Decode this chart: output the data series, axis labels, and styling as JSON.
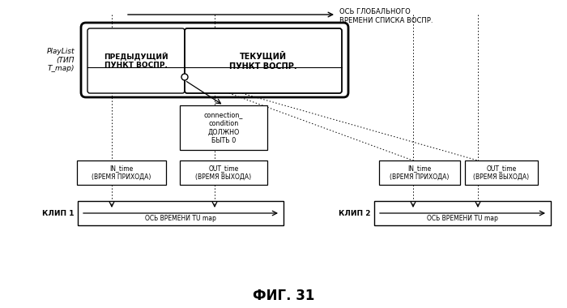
{
  "title": "ФИГ. 31",
  "bg_color": "#ffffff",
  "global_time_label": "ОСЬ ГЛОБАЛЬНОГО\nВРЕМЕНИ СПИСКА ВОСПР.",
  "playlist_label": "PlayList\n(ТИП\nT_map)",
  "prev_item_label": "ПРЕДЫДУЩИЙ\nПУНКТ ВОСПР.",
  "cur_item_label": "ТЕКУЩИЙ\nПУНКТ ВОСПР.",
  "connection_label": "connection_\ncondition\nДОЛЖНО\nБЫТЬ 0",
  "in_time_label1": "IN_time\n(ВРЕМЯ ПРИХОДА)",
  "out_time_label1": "OUT_time\n(ВРЕМЯ ВЫХОДА)",
  "clip1_label": "КЛИП 1",
  "clip1_axis": "ОСЬ ВРЕМЕНИ TU map",
  "in_time_label2": "IN_time\n(ВРЕМЯ ПРИХОДА)",
  "out_time_label2": "OUT_time\n(ВРЕМЯ ВЫХОДА)",
  "clip2_label": "КЛИП 2",
  "clip2_axis": "ОСЬ ВРЕМЕНИ TU map"
}
